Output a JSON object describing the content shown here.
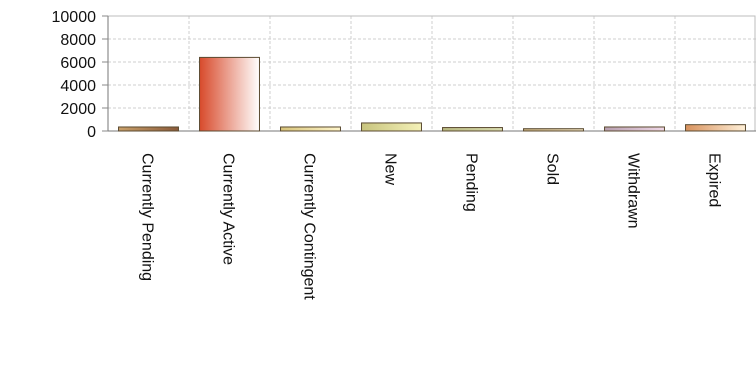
{
  "chart_data": {
    "type": "bar",
    "title": "",
    "xlabel": "",
    "ylabel": "",
    "ylim": [
      0,
      10000
    ],
    "yticks": [
      0,
      2000,
      4000,
      6000,
      8000,
      10000
    ],
    "ytick_labels": [
      "0",
      "2000",
      "4000",
      "6000",
      "8000",
      "10000"
    ],
    "categories": [
      "Currently Pending",
      "Currently Active",
      "Currently Contingent",
      "New",
      "Pending",
      "Sold",
      "Withdrawn",
      "Expired"
    ],
    "values": [
      350,
      6400,
      350,
      700,
      300,
      200,
      350,
      550
    ],
    "grid": true,
    "legend": "none",
    "colors": [
      "#c9a06a",
      "#d84a2b",
      "#d8c47a",
      "#c8c47e",
      "#b8b880",
      "#c9b07e",
      "#b89fb0",
      "#d8925e"
    ],
    "colors_light": [
      "#8a5a3a",
      "#ffffff",
      "#fff6cc",
      "#f4f1b8",
      "#d9dcb0",
      "#efe1c0",
      "#f0d8e8",
      "#fff0d8"
    ]
  }
}
